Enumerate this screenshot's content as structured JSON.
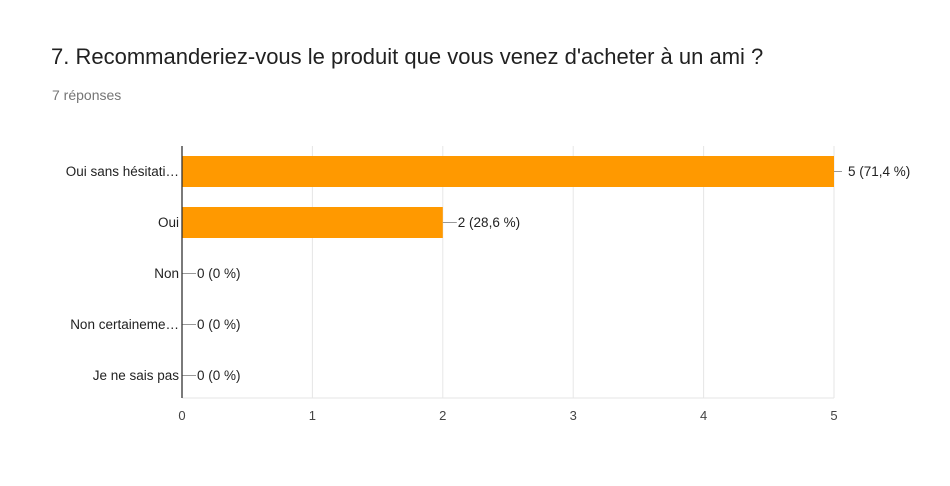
{
  "question": {
    "title": "7. Recommanderiez-vous le produit que vous venez d'acheter à un ami ?",
    "responses": "7 réponses"
  },
  "colors": {
    "bar": "#ff9900",
    "axis": "#333333",
    "grid": "#e6e6e6",
    "label": "#222222",
    "tick": "#444444"
  },
  "chart_data": {
    "type": "bar",
    "orientation": "horizontal",
    "categories": [
      "Oui sans hésitati…",
      "Oui",
      "Non",
      "Non certaineme…",
      "Je ne sais pas"
    ],
    "values": [
      5,
      2,
      0,
      0,
      0
    ],
    "data_labels": [
      "5 (71,4 %)",
      "2 (28,6 %)",
      "0 (0 %)",
      "0 (0 %)",
      "0 (0 %)"
    ],
    "xlim": [
      0,
      5
    ],
    "xticks": [
      "0",
      "1",
      "2",
      "3",
      "4",
      "5"
    ],
    "grid": true,
    "legend": "none"
  }
}
